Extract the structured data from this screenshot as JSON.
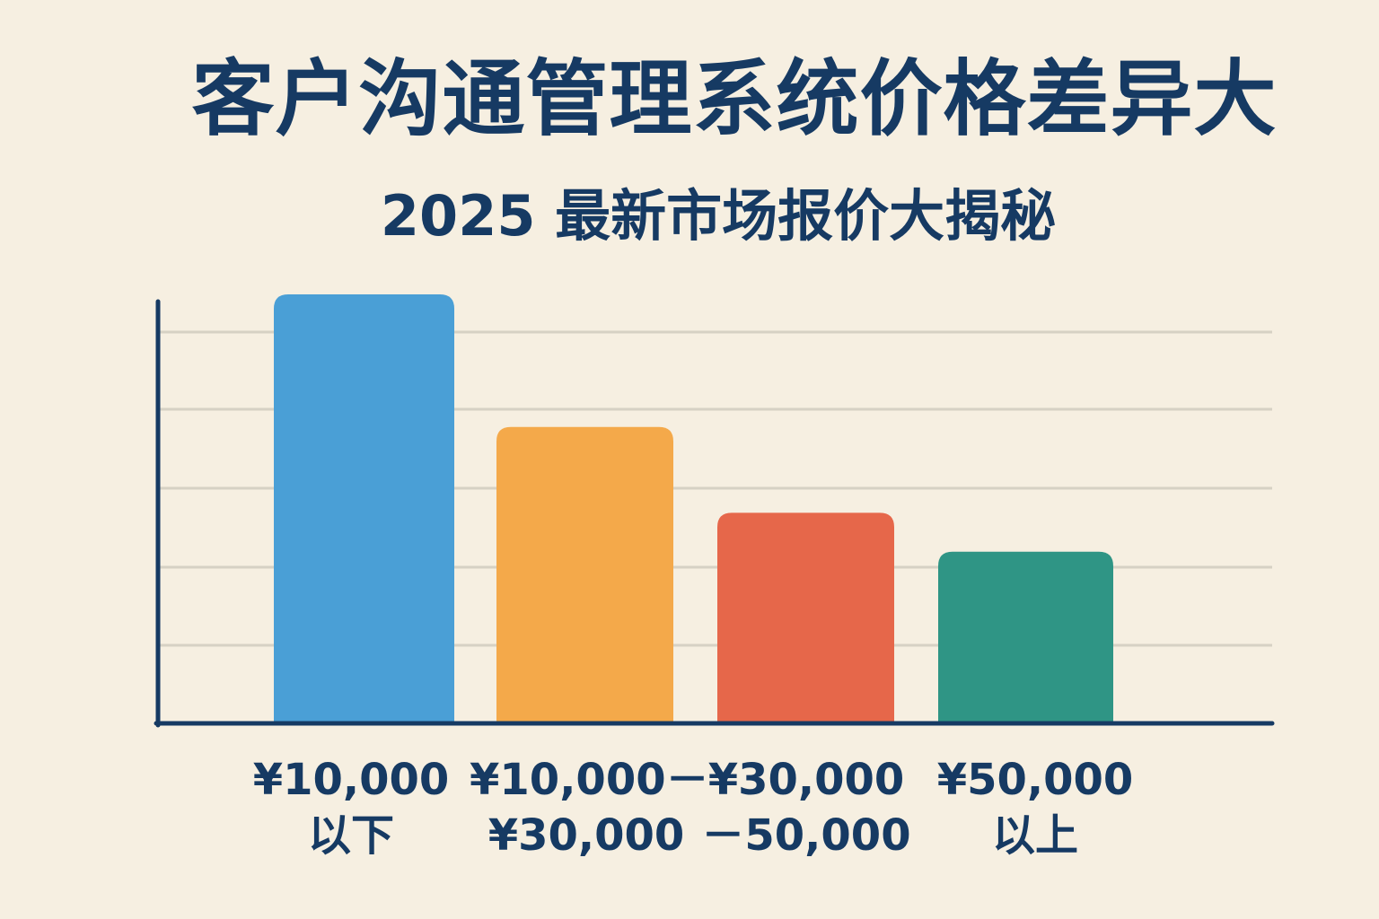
{
  "title": "客户沟通管理系统价格差异大",
  "subtitle": "2025 最新市场报价大揭秘",
  "chart_data": {
    "type": "bar",
    "categories": [
      [
        "¥10,000",
        "以下"
      ],
      [
        "¥10,000－",
        "¥30,000"
      ],
      [
        "¥30,000",
        "－50,000"
      ],
      [
        "¥50,000",
        "以上"
      ]
    ],
    "values": [
      5.5,
      3.8,
      2.7,
      2.2
    ],
    "ylim": [
      0,
      5.5
    ],
    "grid": true,
    "colors": [
      "#4a9fd6",
      "#f4a94a",
      "#e6674a",
      "#2f9585"
    ],
    "axis_color": "#163a63",
    "grid_color": "#d6d1c4"
  }
}
